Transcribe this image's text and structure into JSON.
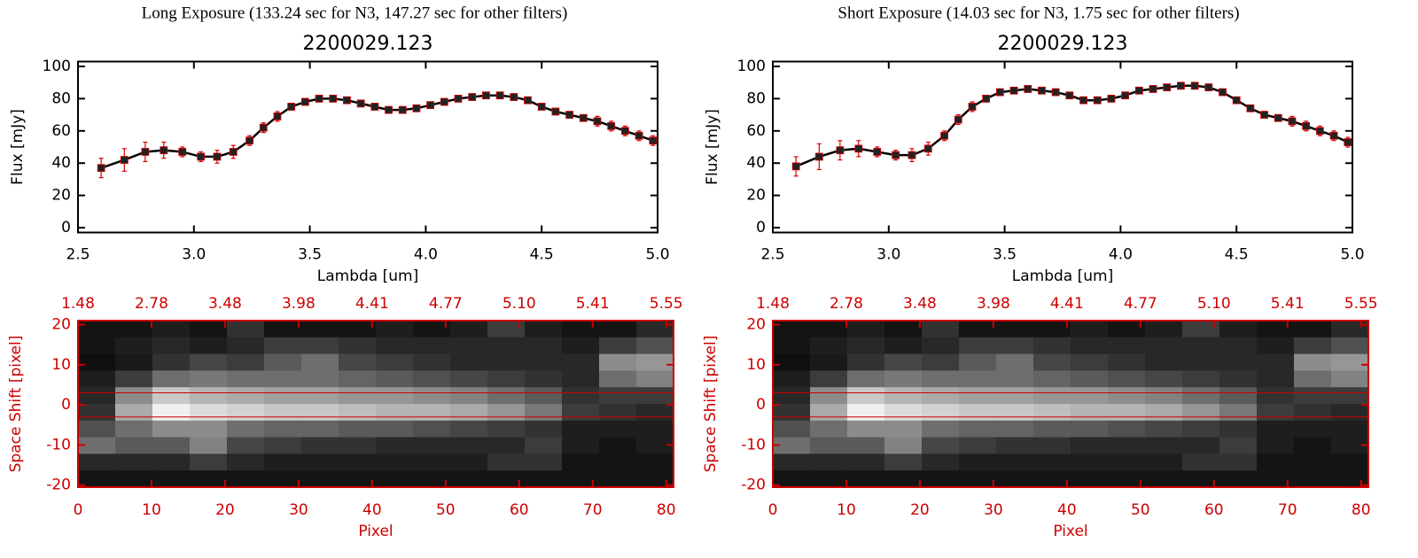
{
  "headers": [
    "Long Exposure (133.24 sec for N3, 147.27 sec for other filters)",
    "Short Exposure (14.03 sec for N3, 1.75 sec for other filters)"
  ],
  "chart_data": [
    {
      "type": "line",
      "title": "2200029.123",
      "xlabel": "Lambda [um]",
      "ylabel": "Flux [mJy]",
      "x": [
        2.6,
        2.7,
        2.79,
        2.87,
        2.95,
        3.03,
        3.1,
        3.17,
        3.24,
        3.3,
        3.36,
        3.42,
        3.48,
        3.54,
        3.6,
        3.66,
        3.72,
        3.78,
        3.84,
        3.9,
        3.96,
        4.02,
        4.08,
        4.14,
        4.2,
        4.26,
        4.32,
        4.38,
        4.44,
        4.5,
        4.56,
        4.62,
        4.68,
        4.74,
        4.8,
        4.86,
        4.92,
        4.98
      ],
      "series": [
        {
          "color": "#000000",
          "marker_color": "#222222",
          "error_color": "#dd0000",
          "values": [
            37,
            42,
            47,
            48,
            47,
            44,
            44,
            47,
            54,
            62,
            69,
            75,
            78,
            80,
            80,
            79,
            77,
            75,
            73,
            73,
            74,
            76,
            78,
            80,
            81,
            82,
            82,
            81,
            79,
            75,
            72,
            70,
            68,
            66,
            63,
            60,
            57,
            54
          ],
          "errors": [
            6,
            7,
            6,
            5,
            3,
            3,
            4,
            4,
            3,
            3,
            3,
            2,
            2,
            2,
            2,
            2,
            2,
            2,
            2,
            2,
            2,
            2,
            2,
            2,
            2,
            2,
            2,
            2,
            2,
            2,
            2,
            2,
            2,
            3,
            3,
            3,
            3,
            3
          ]
        }
      ],
      "xlim": [
        2.5,
        5.0
      ],
      "ylim": [
        -3,
        103
      ],
      "xticks": [
        2.5,
        {
          "value": 3,
          "label": "3.0"
        },
        3.5,
        {
          "value": 4,
          "label": "4.0"
        },
        4.5,
        {
          "value": 5,
          "label": "5.0"
        }
      ],
      "yticks": [
        0,
        20,
        40,
        60,
        80,
        100
      ]
    },
    {
      "type": "image",
      "xlabel": "Pixel",
      "ylabel": "Space Shift [pixel]",
      "color": "#cc0000",
      "line_color": "#cc0000",
      "xlim": [
        0,
        81
      ],
      "ylim": [
        -20.5,
        21
      ],
      "xticks": [
        0,
        10,
        20,
        30,
        40,
        50,
        60,
        70,
        80
      ],
      "yticks": [
        -20,
        -10,
        0,
        10,
        20
      ],
      "x2ticks": [
        {
          "value": 0,
          "label": "1.48"
        },
        {
          "value": 10,
          "label": "2.78"
        },
        {
          "value": 20,
          "label": "3.48"
        },
        {
          "value": 30,
          "label": "3.98"
        },
        {
          "value": 40,
          "label": "4.41"
        },
        {
          "value": 50,
          "label": "4.77"
        },
        {
          "value": 60,
          "label": "5.10"
        },
        {
          "value": 70,
          "label": "5.41"
        },
        {
          "value": 80,
          "label": "5.55"
        }
      ],
      "hlines": [
        3,
        -3
      ],
      "zlim": [
        0,
        255
      ],
      "z": [
        [
          20,
          20,
          30,
          20,
          50,
          20,
          20,
          20,
          30,
          20,
          30,
          60,
          30,
          20,
          20,
          40
        ],
        [
          20,
          30,
          40,
          30,
          40,
          60,
          60,
          50,
          40,
          40,
          40,
          40,
          40,
          30,
          60,
          80
        ],
        [
          15,
          25,
          50,
          70,
          60,
          90,
          110,
          70,
          60,
          50,
          40,
          40,
          40,
          40,
          140,
          150
        ],
        [
          30,
          60,
          110,
          120,
          110,
          110,
          110,
          100,
          90,
          80,
          70,
          60,
          50,
          40,
          110,
          130
        ],
        [
          40,
          140,
          200,
          180,
          170,
          160,
          160,
          150,
          150,
          140,
          130,
          110,
          90,
          50,
          60,
          60
        ],
        [
          50,
          170,
          240,
          220,
          210,
          200,
          200,
          190,
          180,
          180,
          170,
          150,
          120,
          60,
          50,
          40
        ],
        [
          80,
          110,
          140,
          140,
          110,
          100,
          100,
          90,
          90,
          80,
          70,
          60,
          50,
          30,
          30,
          30
        ],
        [
          110,
          90,
          90,
          130,
          70,
          60,
          50,
          50,
          40,
          40,
          40,
          40,
          60,
          30,
          20,
          30
        ],
        [
          40,
          40,
          40,
          60,
          40,
          30,
          30,
          30,
          30,
          30,
          30,
          50,
          50,
          20,
          20,
          20
        ],
        [
          20,
          20,
          20,
          20,
          20,
          20,
          20,
          20,
          20,
          20,
          20,
          20,
          20,
          20,
          20,
          20
        ]
      ]
    },
    {
      "type": "line",
      "title": "2200029.123",
      "xlabel": "Lambda [um]",
      "ylabel": "Flux [mJy]",
      "x": [
        2.6,
        2.7,
        2.79,
        2.87,
        2.95,
        3.03,
        3.1,
        3.17,
        3.24,
        3.3,
        3.36,
        3.42,
        3.48,
        3.54,
        3.6,
        3.66,
        3.72,
        3.78,
        3.84,
        3.9,
        3.96,
        4.02,
        4.08,
        4.14,
        4.2,
        4.26,
        4.32,
        4.38,
        4.44,
        4.5,
        4.56,
        4.62,
        4.68,
        4.74,
        4.8,
        4.86,
        4.92,
        4.98
      ],
      "series": [
        {
          "color": "#000000",
          "marker_color": "#222222",
          "error_color": "#dd0000",
          "values": [
            38,
            44,
            48,
            49,
            47,
            45,
            45,
            49,
            57,
            67,
            75,
            80,
            84,
            85,
            86,
            85,
            84,
            82,
            79,
            79,
            80,
            82,
            85,
            86,
            87,
            88,
            88,
            87,
            84,
            79,
            74,
            70,
            68,
            66,
            63,
            60,
            57,
            53
          ],
          "errors": [
            6,
            8,
            6,
            5,
            3,
            3,
            4,
            4,
            3,
            3,
            3,
            2,
            2,
            2,
            2,
            2,
            2,
            2,
            2,
            2,
            2,
            2,
            2,
            2,
            2,
            2,
            2,
            2,
            2,
            2,
            2,
            2,
            2,
            3,
            3,
            3,
            3,
            3
          ]
        }
      ],
      "xlim": [
        2.5,
        5.0
      ],
      "ylim": [
        -3,
        103
      ],
      "xticks": [
        2.5,
        {
          "value": 3,
          "label": "3.0"
        },
        3.5,
        {
          "value": 4,
          "label": "4.0"
        },
        4.5,
        {
          "value": 5,
          "label": "5.0"
        }
      ],
      "yticks": [
        0,
        20,
        40,
        60,
        80,
        100
      ]
    },
    {
      "type": "image",
      "xlabel": "Pixel",
      "ylabel": "Space Shift [pixel]",
      "color": "#cc0000",
      "line_color": "#cc0000",
      "xlim": [
        0,
        81
      ],
      "ylim": [
        -20.5,
        21
      ],
      "xticks": [
        0,
        10,
        20,
        30,
        40,
        50,
        60,
        70,
        80
      ],
      "yticks": [
        -20,
        -10,
        0,
        10,
        20
      ],
      "x2ticks": [
        {
          "value": 0,
          "label": "1.48"
        },
        {
          "value": 10,
          "label": "2.78"
        },
        {
          "value": 20,
          "label": "3.48"
        },
        {
          "value": 30,
          "label": "3.98"
        },
        {
          "value": 40,
          "label": "4.41"
        },
        {
          "value": 50,
          "label": "4.77"
        },
        {
          "value": 60,
          "label": "5.10"
        },
        {
          "value": 70,
          "label": "5.41"
        },
        {
          "value": 80,
          "label": "5.55"
        }
      ],
      "hlines": [
        3,
        -3
      ],
      "zlim": [
        0,
        255
      ],
      "z": [
        [
          20,
          20,
          30,
          20,
          50,
          20,
          20,
          20,
          30,
          20,
          30,
          60,
          30,
          20,
          20,
          40
        ],
        [
          20,
          30,
          40,
          30,
          40,
          60,
          60,
          50,
          40,
          40,
          40,
          40,
          40,
          30,
          60,
          80
        ],
        [
          15,
          25,
          50,
          70,
          60,
          90,
          110,
          70,
          60,
          50,
          40,
          40,
          40,
          40,
          140,
          150
        ],
        [
          30,
          60,
          110,
          120,
          110,
          110,
          110,
          100,
          90,
          80,
          70,
          60,
          50,
          40,
          110,
          130
        ],
        [
          40,
          140,
          200,
          180,
          170,
          160,
          160,
          150,
          150,
          140,
          130,
          110,
          90,
          50,
          60,
          60
        ],
        [
          50,
          170,
          240,
          220,
          210,
          200,
          200,
          190,
          180,
          180,
          170,
          150,
          120,
          60,
          50,
          40
        ],
        [
          80,
          110,
          140,
          140,
          110,
          100,
          100,
          90,
          90,
          80,
          70,
          60,
          50,
          30,
          30,
          30
        ],
        [
          110,
          90,
          90,
          130,
          70,
          60,
          50,
          50,
          40,
          40,
          40,
          40,
          60,
          30,
          20,
          30
        ],
        [
          40,
          40,
          40,
          60,
          40,
          30,
          30,
          30,
          30,
          30,
          30,
          50,
          50,
          20,
          20,
          20
        ],
        [
          20,
          20,
          20,
          20,
          20,
          20,
          20,
          20,
          20,
          20,
          20,
          20,
          20,
          20,
          20,
          20
        ]
      ]
    }
  ]
}
